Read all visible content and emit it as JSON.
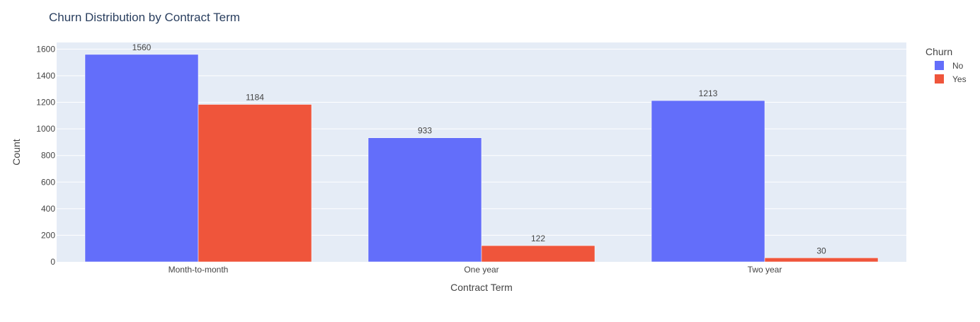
{
  "chart_data": {
    "type": "bar",
    "title": "Churn Distribution by Contract Term",
    "xlabel": "Contract Term",
    "ylabel": "Count",
    "categories": [
      "Month-to-month",
      "One year",
      "Two year"
    ],
    "series": [
      {
        "name": "No",
        "values": [
          1560,
          933,
          1213
        ],
        "color": "#636efa"
      },
      {
        "name": "Yes",
        "values": [
          1184,
          122,
          30
        ],
        "color": "#ef553b"
      }
    ],
    "ylim": [
      0,
      1650
    ],
    "yticks": [
      0,
      200,
      400,
      600,
      800,
      1000,
      1200,
      1400,
      1600
    ],
    "grid": true,
    "legend": {
      "title": "Churn",
      "placement": "top-right"
    },
    "colors": {
      "plot_background": "#e5ecf6",
      "grid": "#ffffff",
      "text": "#444444",
      "title": "#2a3f5f"
    }
  }
}
